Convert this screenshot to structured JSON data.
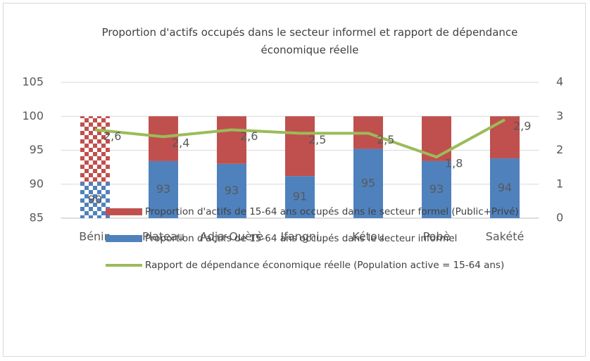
{
  "chart_data": {
    "type": "bar_line",
    "title": "Proportion d'actifs occupés dans le secteur informel et rapport de dépendance économique réelle",
    "categories": [
      "Bénin",
      "Plateau",
      "Adja-Ouèrè",
      "Ifangni",
      "Kétou",
      "Pobè",
      "Sakété"
    ],
    "series": [
      {
        "name": "Proportion d'actifs de 15-64 ans occupés dans le secteur formel (Public+Privé)",
        "type": "bar",
        "color": "#c0504d",
        "values": [
          9.7,
          6.6,
          7.0,
          8.8,
          4.8,
          6.6,
          6.2
        ]
      },
      {
        "name": "Proportion d'actifs de 15-64 ans occupés dans le secteur informel",
        "type": "bar",
        "color": "#4f81bd",
        "values": [
          90.3,
          93.4,
          93.0,
          91.2,
          95.2,
          93.4,
          93.8
        ],
        "value_labels": [
          "90",
          "93",
          "93",
          "91",
          "95",
          "93",
          "94"
        ]
      },
      {
        "name": "Rapport de dépendance économique réelle (Population active = 15-64 ans)",
        "type": "line",
        "axis": "y2",
        "color": "#9bbb59",
        "values": [
          2.6,
          2.4,
          2.6,
          2.5,
          2.5,
          1.8,
          2.9
        ],
        "value_labels": [
          "2,6",
          "2,4",
          "2,6",
          "2,5",
          "2,5",
          "1,8",
          "2,9"
        ]
      }
    ],
    "pattern": "checkerboard",
    "pattern_index": 0,
    "ylim": [
      85,
      105
    ],
    "yticks": [
      85,
      90,
      95,
      100,
      105
    ],
    "y2lim": [
      0,
      4
    ],
    "y2ticks": [
      0,
      1,
      2,
      3,
      4
    ],
    "grid": true,
    "stacked": true,
    "legend": "bottom"
  }
}
